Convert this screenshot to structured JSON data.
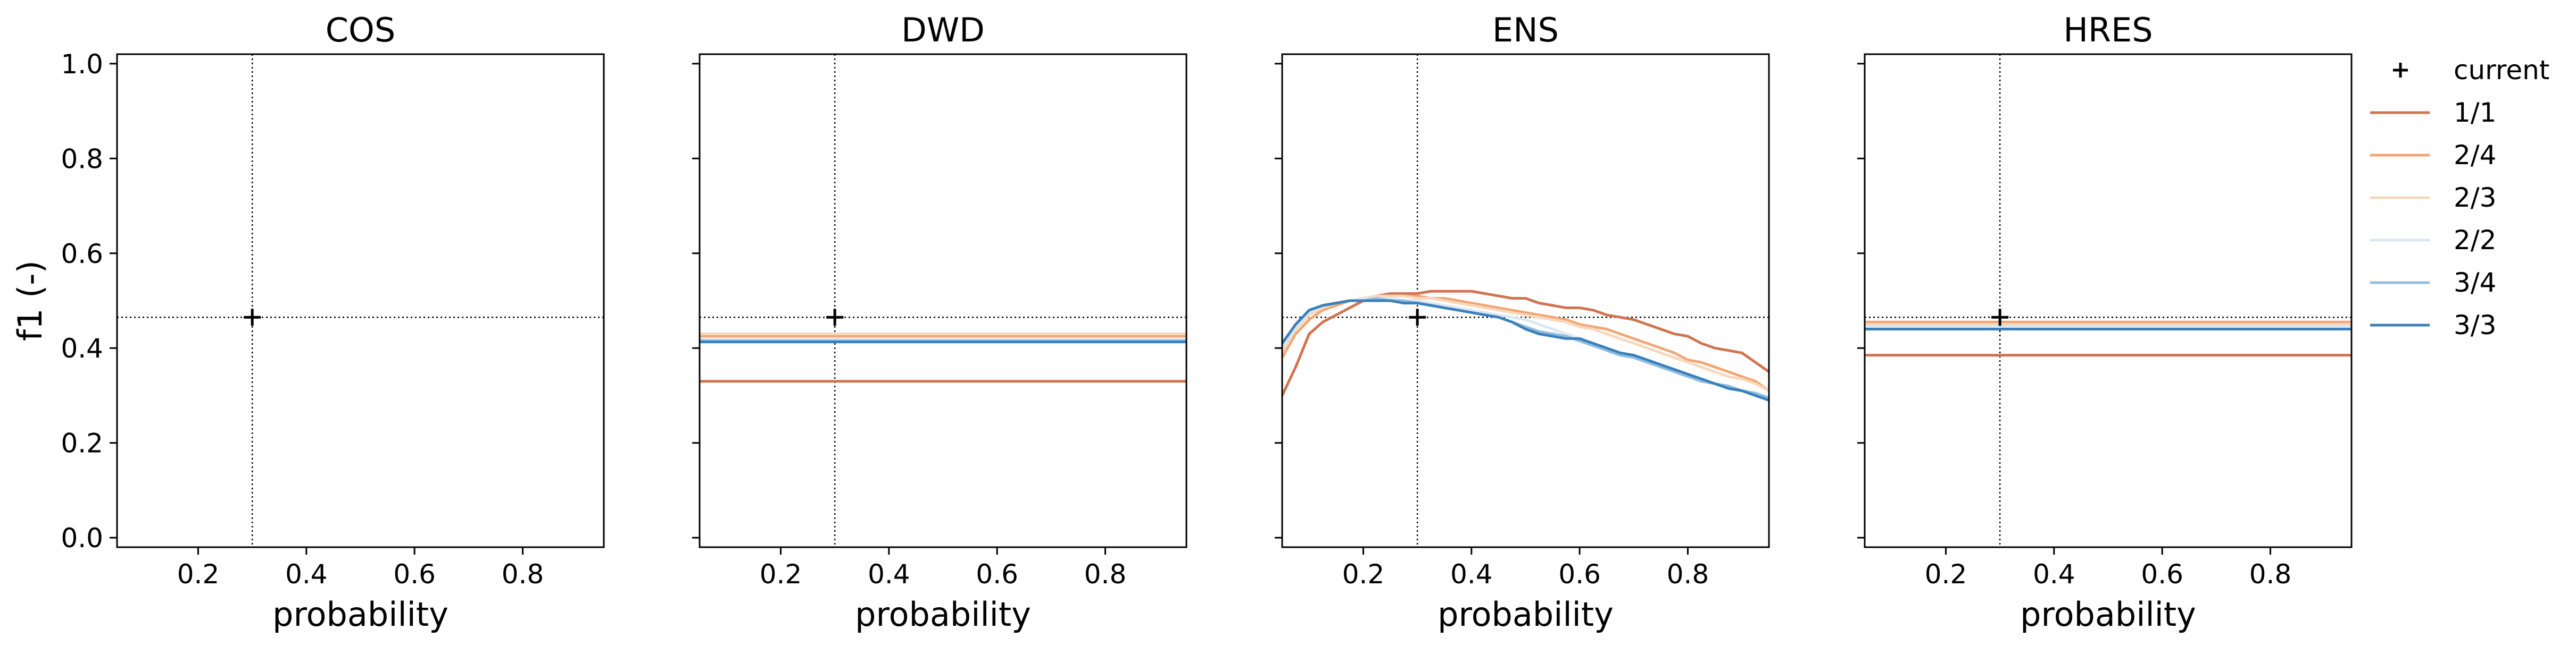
{
  "chart_data": {
    "type": "line",
    "ylabel": "f1 (-)",
    "xlabel": "probability",
    "xlim": [
      0.05,
      0.95
    ],
    "ylim": [
      -0.02,
      1.02
    ],
    "xticks": [
      0.2,
      0.4,
      0.6,
      0.8
    ],
    "xtick_labels": [
      "0.2",
      "0.4",
      "0.6",
      "0.8"
    ],
    "yticks": [
      0.0,
      0.2,
      0.4,
      0.6,
      0.8,
      1.0
    ],
    "ytick_labels": [
      "0.0",
      "0.2",
      "0.4",
      "0.6",
      "0.8",
      "1.0"
    ],
    "reference": {
      "x": 0.3,
      "y": 0.465
    },
    "legend": {
      "placement": "outside-right",
      "entries": [
        {
          "label": "current",
          "marker": "plus",
          "color": "#000000"
        },
        {
          "label": "1/1",
          "color": "#d1734f"
        },
        {
          "label": "2/4",
          "color": "#f2a675"
        },
        {
          "label": "2/3",
          "color": "#f7d8bd"
        },
        {
          "label": "2/2",
          "color": "#dbe8f3"
        },
        {
          "label": "3/4",
          "color": "#92bedf"
        },
        {
          "label": "3/3",
          "color": "#3a80bb"
        }
      ]
    },
    "panels": [
      {
        "title": "COS",
        "series": []
      },
      {
        "title": "DWD",
        "series": [
          {
            "name": "1/1",
            "x": [
              0.05,
              0.95
            ],
            "y": [
              0.33,
              0.33
            ]
          },
          {
            "name": "2/4",
            "x": [
              0.05,
              0.95
            ],
            "y": [
              0.425,
              0.425
            ]
          },
          {
            "name": "2/3",
            "x": [
              0.05,
              0.95
            ],
            "y": [
              0.43,
              0.43
            ]
          },
          {
            "name": "2/2",
            "x": [
              0.05,
              0.95
            ],
            "y": [
              0.42,
              0.42
            ]
          },
          {
            "name": "3/4",
            "x": [
              0.05,
              0.95
            ],
            "y": [
              0.415,
              0.415
            ]
          },
          {
            "name": "3/3",
            "x": [
              0.05,
              0.95
            ],
            "y": [
              0.413,
              0.413
            ]
          }
        ]
      },
      {
        "title": "ENS",
        "series": [
          {
            "name": "1/1",
            "x": [
              0.05,
              0.075,
              0.1,
              0.125,
              0.15,
              0.175,
              0.2,
              0.225,
              0.25,
              0.275,
              0.3,
              0.325,
              0.35,
              0.375,
              0.4,
              0.425,
              0.45,
              0.475,
              0.5,
              0.525,
              0.55,
              0.575,
              0.6,
              0.625,
              0.65,
              0.675,
              0.7,
              0.725,
              0.75,
              0.775,
              0.8,
              0.825,
              0.85,
              0.875,
              0.9,
              0.925,
              0.95
            ],
            "y": [
              0.3,
              0.36,
              0.43,
              0.455,
              0.47,
              0.485,
              0.5,
              0.51,
              0.515,
              0.515,
              0.515,
              0.52,
              0.52,
              0.52,
              0.52,
              0.515,
              0.51,
              0.505,
              0.505,
              0.495,
              0.49,
              0.485,
              0.485,
              0.48,
              0.47,
              0.465,
              0.46,
              0.45,
              0.44,
              0.43,
              0.425,
              0.41,
              0.4,
              0.395,
              0.39,
              0.37,
              0.35
            ]
          },
          {
            "name": "2/4",
            "x": [
              0.05,
              0.075,
              0.1,
              0.125,
              0.15,
              0.175,
              0.2,
              0.225,
              0.25,
              0.275,
              0.3,
              0.325,
              0.35,
              0.375,
              0.4,
              0.425,
              0.45,
              0.475,
              0.5,
              0.525,
              0.55,
              0.575,
              0.6,
              0.625,
              0.65,
              0.675,
              0.7,
              0.725,
              0.75,
              0.775,
              0.8,
              0.825,
              0.85,
              0.875,
              0.9,
              0.925,
              0.95
            ],
            "y": [
              0.38,
              0.43,
              0.46,
              0.48,
              0.49,
              0.5,
              0.505,
              0.51,
              0.51,
              0.51,
              0.51,
              0.505,
              0.505,
              0.5,
              0.495,
              0.49,
              0.485,
              0.48,
              0.475,
              0.47,
              0.465,
              0.46,
              0.45,
              0.445,
              0.44,
              0.43,
              0.42,
              0.41,
              0.4,
              0.39,
              0.375,
              0.37,
              0.36,
              0.35,
              0.34,
              0.33,
              0.31
            ]
          },
          {
            "name": "2/3",
            "x": [
              0.05,
              0.075,
              0.1,
              0.125,
              0.15,
              0.175,
              0.2,
              0.225,
              0.25,
              0.275,
              0.3,
              0.325,
              0.35,
              0.375,
              0.4,
              0.425,
              0.45,
              0.475,
              0.5,
              0.525,
              0.55,
              0.575,
              0.6,
              0.625,
              0.65,
              0.675,
              0.7,
              0.725,
              0.75,
              0.775,
              0.8,
              0.825,
              0.85,
              0.875,
              0.9,
              0.925,
              0.95
            ],
            "y": [
              0.39,
              0.44,
              0.47,
              0.485,
              0.495,
              0.5,
              0.505,
              0.51,
              0.51,
              0.51,
              0.505,
              0.505,
              0.5,
              0.495,
              0.49,
              0.485,
              0.48,
              0.475,
              0.47,
              0.465,
              0.46,
              0.455,
              0.445,
              0.44,
              0.43,
              0.42,
              0.41,
              0.4,
              0.39,
              0.38,
              0.37,
              0.36,
              0.35,
              0.34,
              0.335,
              0.325,
              0.31
            ]
          },
          {
            "name": "2/2",
            "x": [
              0.05,
              0.075,
              0.1,
              0.125,
              0.15,
              0.175,
              0.2,
              0.225,
              0.25,
              0.275,
              0.3,
              0.325,
              0.35,
              0.375,
              0.4,
              0.425,
              0.45,
              0.475,
              0.5,
              0.525,
              0.55,
              0.575,
              0.6,
              0.625,
              0.65,
              0.675,
              0.7,
              0.725,
              0.75,
              0.775,
              0.8,
              0.825,
              0.85,
              0.875,
              0.9,
              0.925,
              0.95
            ],
            "y": [
              0.4,
              0.445,
              0.475,
              0.49,
              0.495,
              0.5,
              0.505,
              0.505,
              0.505,
              0.5,
              0.5,
              0.495,
              0.49,
              0.485,
              0.48,
              0.475,
              0.47,
              0.465,
              0.46,
              0.45,
              0.44,
              0.43,
              0.42,
              0.41,
              0.4,
              0.39,
              0.38,
              0.37,
              0.36,
              0.35,
              0.34,
              0.33,
              0.325,
              0.32,
              0.31,
              0.305,
              0.295
            ]
          },
          {
            "name": "3/4",
            "x": [
              0.05,
              0.075,
              0.1,
              0.125,
              0.15,
              0.175,
              0.2,
              0.225,
              0.25,
              0.275,
              0.3,
              0.325,
              0.35,
              0.375,
              0.4,
              0.425,
              0.45,
              0.475,
              0.5,
              0.525,
              0.55,
              0.575,
              0.6,
              0.625,
              0.65,
              0.675,
              0.7,
              0.725,
              0.75,
              0.775,
              0.8,
              0.825,
              0.85,
              0.875,
              0.9,
              0.925,
              0.95
            ],
            "y": [
              0.41,
              0.45,
              0.48,
              0.49,
              0.495,
              0.5,
              0.5,
              0.505,
              0.5,
              0.5,
              0.495,
              0.49,
              0.485,
              0.48,
              0.475,
              0.47,
              0.465,
              0.455,
              0.445,
              0.435,
              0.43,
              0.425,
              0.415,
              0.405,
              0.395,
              0.385,
              0.38,
              0.37,
              0.36,
              0.35,
              0.34,
              0.33,
              0.325,
              0.32,
              0.31,
              0.305,
              0.295
            ]
          },
          {
            "name": "3/3",
            "x": [
              0.05,
              0.075,
              0.1,
              0.125,
              0.15,
              0.175,
              0.2,
              0.225,
              0.25,
              0.275,
              0.3,
              0.325,
              0.35,
              0.375,
              0.4,
              0.425,
              0.45,
              0.475,
              0.5,
              0.525,
              0.55,
              0.575,
              0.6,
              0.625,
              0.65,
              0.675,
              0.7,
              0.725,
              0.75,
              0.775,
              0.8,
              0.825,
              0.85,
              0.875,
              0.9,
              0.925,
              0.95
            ],
            "y": [
              0.41,
              0.45,
              0.48,
              0.49,
              0.495,
              0.5,
              0.5,
              0.5,
              0.5,
              0.495,
              0.495,
              0.49,
              0.485,
              0.48,
              0.475,
              0.47,
              0.465,
              0.455,
              0.44,
              0.43,
              0.425,
              0.42,
              0.42,
              0.41,
              0.4,
              0.39,
              0.385,
              0.375,
              0.365,
              0.355,
              0.345,
              0.335,
              0.325,
              0.315,
              0.31,
              0.3,
              0.29
            ]
          }
        ]
      },
      {
        "title": "HRES",
        "series": [
          {
            "name": "1/1",
            "x": [
              0.05,
              0.95
            ],
            "y": [
              0.385,
              0.385
            ]
          },
          {
            "name": "2/4",
            "x": [
              0.05,
              0.95
            ],
            "y": [
              0.455,
              0.455
            ]
          },
          {
            "name": "2/3",
            "x": [
              0.05,
              0.95
            ],
            "y": [
              0.45,
              0.45
            ]
          },
          {
            "name": "2/2",
            "x": [
              0.05,
              0.95
            ],
            "y": [
              0.445,
              0.445
            ]
          },
          {
            "name": "3/4",
            "x": [
              0.05,
              0.95
            ],
            "y": [
              0.44,
              0.44
            ]
          },
          {
            "name": "3/3",
            "x": [
              0.05,
              0.95
            ],
            "y": [
              0.44,
              0.44
            ]
          }
        ]
      }
    ]
  }
}
